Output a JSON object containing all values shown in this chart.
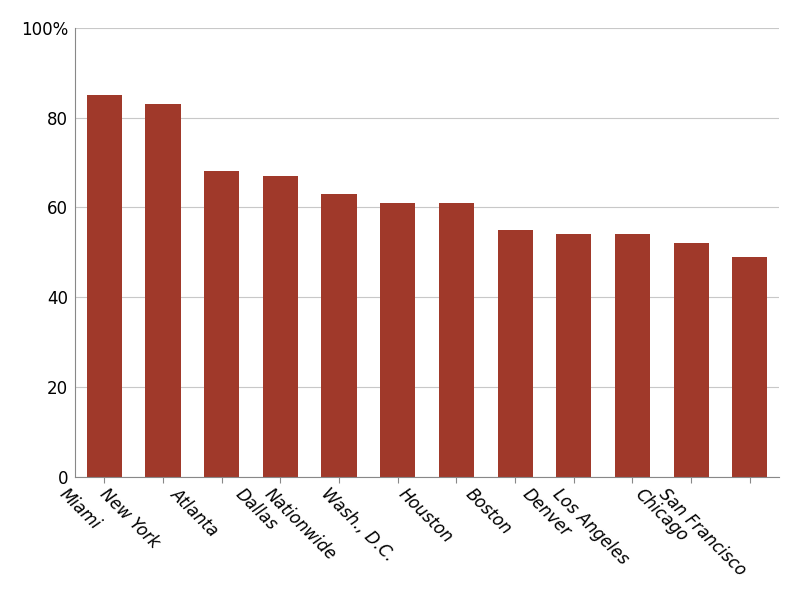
{
  "categories": [
    "Miami",
    "New York",
    "Atlanta",
    "Dallas",
    "Nationwide",
    "Wash., D.C.",
    "Houston",
    "Boston",
    "Denver",
    "Los Angeles",
    "Chicago",
    "San Francisco"
  ],
  "values": [
    85,
    83,
    68,
    67,
    63,
    61,
    61,
    55,
    54,
    54,
    52,
    49
  ],
  "bar_color": "#a0392a",
  "ylim": [
    0,
    100
  ],
  "yticks": [
    0,
    20,
    40,
    60,
    80,
    100
  ],
  "ytick_labels": [
    "0",
    "20",
    "40",
    "60",
    "80",
    "100%"
  ],
  "background_color": "#ffffff",
  "grid_color": "#c8c8c8",
  "spine_color": "#888888",
  "bar_width": 0.6,
  "figsize": [
    8.0,
    6.0
  ],
  "dpi": 100,
  "tick_fontsize": 12,
  "label_rotation": -45
}
